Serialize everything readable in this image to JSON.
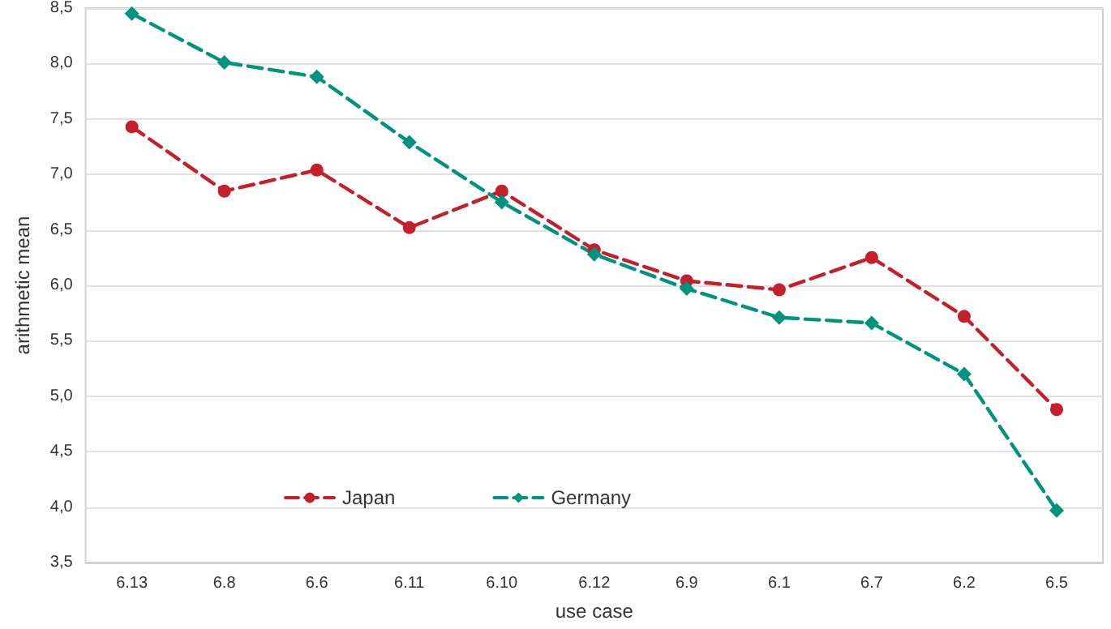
{
  "chart_data": {
    "type": "line",
    "xlabel": "use case",
    "ylabel": "arithmetic mean",
    "categories": [
      "6.13",
      "6.8",
      "6.6",
      "6.11",
      "6.10",
      "6.12",
      "6.9",
      "6.1",
      "6.7",
      "6.2",
      "6.5"
    ],
    "series": [
      {
        "name": "Japan",
        "color": "#c3202b",
        "marker": "circle",
        "values": [
          7.43,
          6.85,
          7.04,
          6.52,
          6.85,
          6.32,
          6.04,
          5.96,
          6.25,
          5.72,
          4.88
        ]
      },
      {
        "name": "Germany",
        "color": "#00937e",
        "marker": "diamond",
        "values": [
          8.45,
          8.01,
          7.88,
          7.29,
          6.75,
          6.28,
          5.97,
          5.71,
          5.66,
          5.2,
          3.97
        ]
      }
    ],
    "ylim": [
      3.5,
      8.5
    ],
    "yticks": [
      {
        "value": 3.5,
        "label": "3,5"
      },
      {
        "value": 4,
        "label": "4,0"
      },
      {
        "value": 4.5,
        "label": "4,5"
      },
      {
        "value": 5,
        "label": "5,0"
      },
      {
        "value": 5.5,
        "label": "5,5"
      },
      {
        "value": 6,
        "label": "6,0"
      },
      {
        "value": 6.5,
        "label": "6,5"
      },
      {
        "value": 7,
        "label": "7,0"
      },
      {
        "value": 7.5,
        "label": "7,5"
      },
      {
        "value": 8,
        "label": "8,0"
      },
      {
        "value": 8.5,
        "label": "8,5"
      }
    ],
    "grid": "y",
    "legend": "bottom left",
    "line_style": "dashed"
  }
}
